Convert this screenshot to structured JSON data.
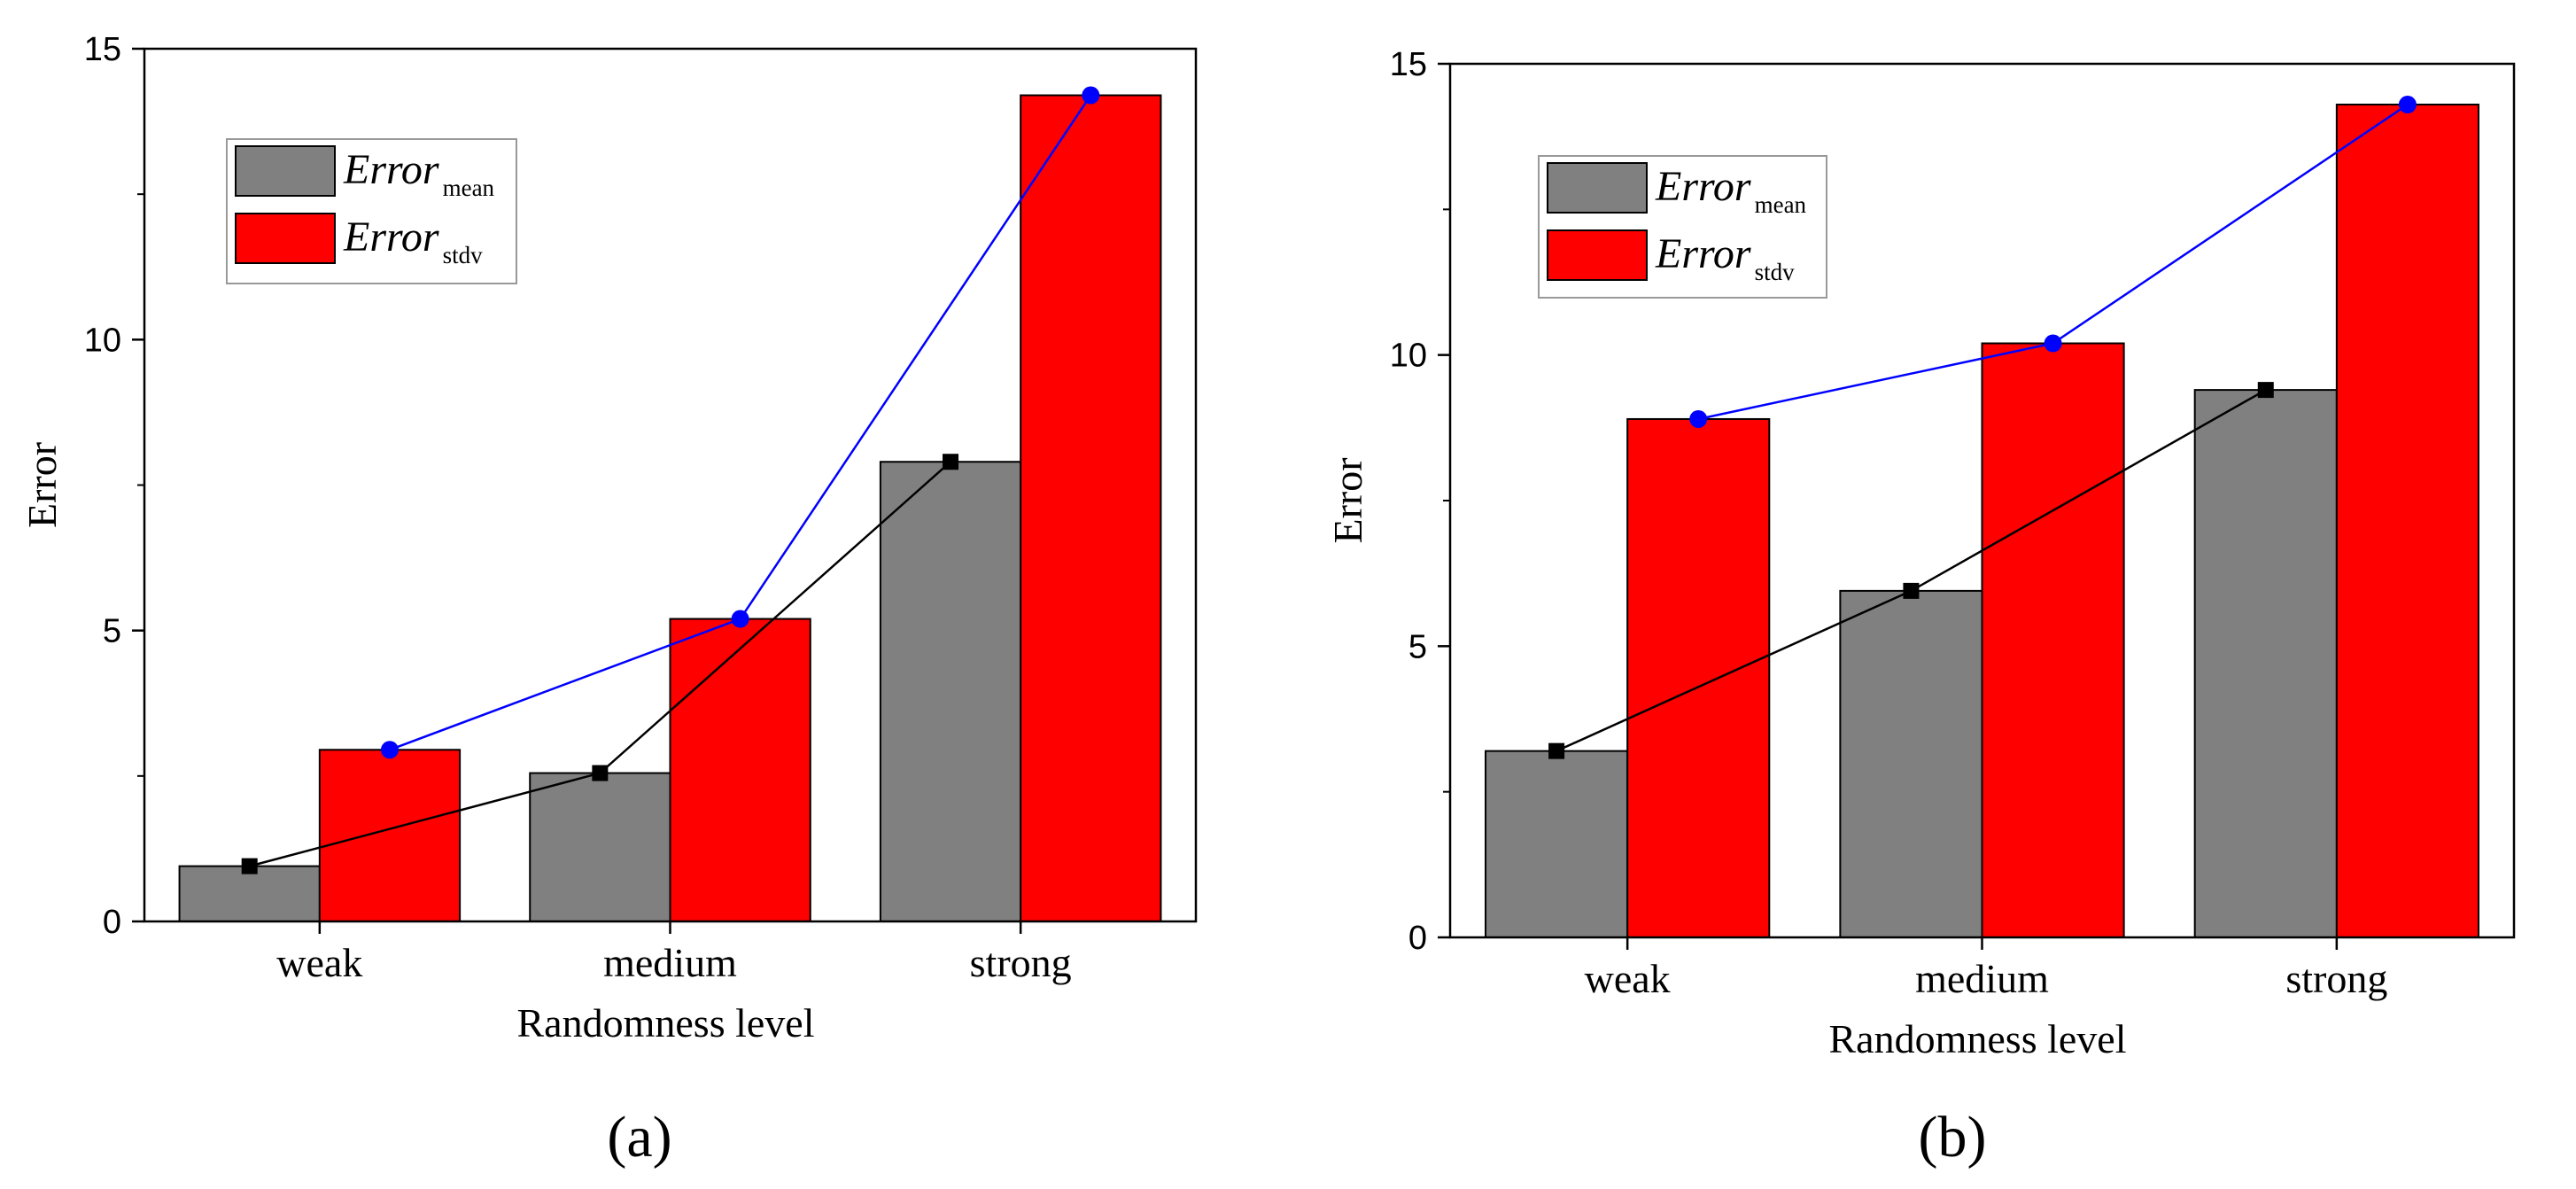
{
  "chart_data": [
    {
      "type": "bar",
      "panel_label": "(a)",
      "categories": [
        "weak",
        "medium",
        "strong"
      ],
      "xlabel": "Randomness level",
      "ylabel": "Error",
      "ylim": [
        0,
        15
      ],
      "yticks": [
        "0",
        "5",
        "10",
        "15"
      ],
      "legend": {
        "placement": "top-left"
      },
      "series": [
        {
          "name": "Error",
          "subscript": "mean",
          "color": "#808080",
          "marker": "square",
          "line_color": "#000000",
          "values": [
            0.95,
            2.55,
            7.9
          ]
        },
        {
          "name": "Error",
          "subscript": "stdv",
          "color": "#ff0000",
          "marker": "circle",
          "line_color": "#0000ff",
          "values": [
            2.95,
            5.2,
            14.2
          ]
        }
      ]
    },
    {
      "type": "bar",
      "panel_label": "(b)",
      "categories": [
        "weak",
        "medium",
        "strong"
      ],
      "xlabel": "Randomness level",
      "ylabel": "Error",
      "ylim": [
        0,
        15
      ],
      "yticks": [
        "0",
        "5",
        "10",
        "15"
      ],
      "legend": {
        "placement": "top-left"
      },
      "series": [
        {
          "name": "Error",
          "subscript": "mean",
          "color": "#808080",
          "marker": "square",
          "line_color": "#000000",
          "values": [
            3.2,
            5.95,
            9.4
          ]
        },
        {
          "name": "Error",
          "subscript": "stdv",
          "color": "#ff0000",
          "marker": "circle",
          "line_color": "#0000ff",
          "values": [
            8.9,
            10.2,
            14.3
          ]
        }
      ]
    }
  ]
}
